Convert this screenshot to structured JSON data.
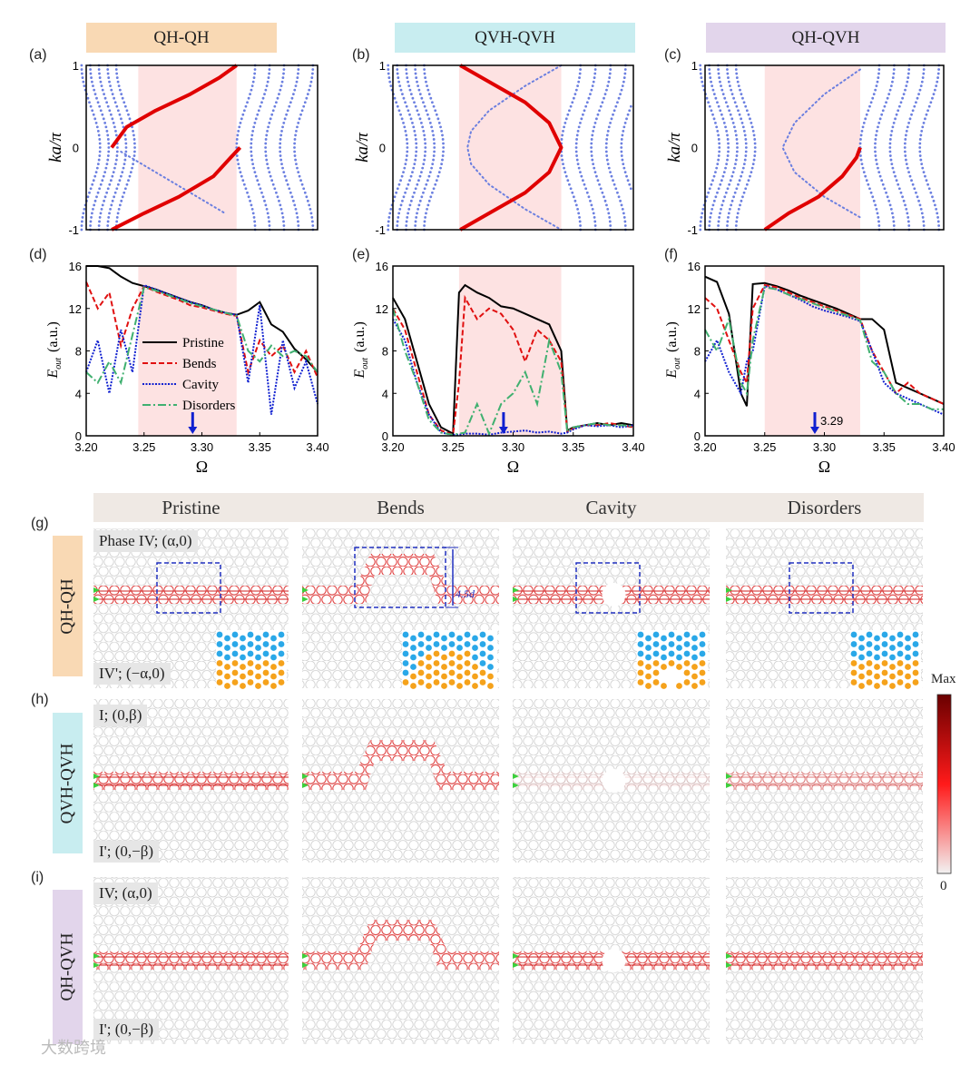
{
  "panels_top": {
    "headers": [
      "QH-QH",
      "QVH-QVH",
      "QH-QVH"
    ],
    "letters": [
      "(a)",
      "(b)",
      "(c)",
      "(d)",
      "(e)",
      "(f)"
    ],
    "colors": {
      "qhqh": "#f9d9b4",
      "qvh": "#c8edf0",
      "qhqvh": "#e2d5eb",
      "shade": "#fde2e2",
      "edge": "#e00000",
      "bulk": "#6b7fe0",
      "arrow": "#1020d0"
    }
  },
  "chart_data": [
    {
      "type": "scatter",
      "panel": "a",
      "ylabel": "ka/π",
      "xlabel": "",
      "yticks": [
        "1",
        "0",
        "-1"
      ],
      "ylim": [
        -1,
        1
      ],
      "xlim": [
        3.2,
        3.4
      ],
      "gap": [
        3.245,
        3.33
      ],
      "edge_red": [
        [
          [
            3.222,
            0
          ],
          [
            3.235,
            0.25
          ],
          [
            3.26,
            0.45
          ],
          [
            3.29,
            0.65
          ],
          [
            3.315,
            0.85
          ],
          [
            3.33,
            1
          ]
        ],
        [
          [
            3.222,
            -1
          ],
          [
            3.25,
            -0.8
          ],
          [
            3.28,
            -0.6
          ],
          [
            3.31,
            -0.35
          ],
          [
            3.325,
            -0.12
          ],
          [
            3.333,
            0
          ]
        ]
      ],
      "edge_blue": [
        [
          [
            3.23,
            -0.05
          ],
          [
            3.26,
            -0.3
          ],
          [
            3.29,
            -0.55
          ],
          [
            3.32,
            -0.8
          ]
        ]
      ]
    },
    {
      "type": "scatter",
      "panel": "b",
      "ylabel": "ka/π",
      "xlabel": "",
      "yticks": [
        "1",
        "0",
        "-1"
      ],
      "ylim": [
        -1,
        1
      ],
      "xlim": [
        3.2,
        3.4
      ],
      "gap": [
        3.255,
        3.34
      ],
      "edge_red": [
        [
          [
            3.256,
            1
          ],
          [
            3.28,
            0.8
          ],
          [
            3.31,
            0.55
          ],
          [
            3.33,
            0.3
          ],
          [
            3.34,
            0
          ],
          [
            3.33,
            -0.3
          ],
          [
            3.31,
            -0.55
          ],
          [
            3.28,
            -0.8
          ],
          [
            3.256,
            -1
          ]
        ]
      ],
      "edge_blue": [
        [
          [
            3.34,
            1
          ],
          [
            3.31,
            0.75
          ],
          [
            3.28,
            0.45
          ],
          [
            3.265,
            0.2
          ],
          [
            3.262,
            0
          ],
          [
            3.265,
            -0.2
          ],
          [
            3.28,
            -0.45
          ],
          [
            3.31,
            -0.75
          ],
          [
            3.34,
            -1
          ]
        ]
      ]
    },
    {
      "type": "scatter",
      "panel": "c",
      "ylabel": "ka/π",
      "xlabel": "",
      "yticks": [
        "1",
        "0",
        "-1"
      ],
      "ylim": [
        -1,
        1
      ],
      "xlim": [
        3.2,
        3.4
      ],
      "gap": [
        3.25,
        3.33
      ],
      "edge_red": [
        [
          [
            3.25,
            -1
          ],
          [
            3.27,
            -0.8
          ],
          [
            3.295,
            -0.6
          ],
          [
            3.315,
            -0.35
          ],
          [
            3.327,
            -0.12
          ],
          [
            3.33,
            0
          ]
        ]
      ],
      "edge_blue": [
        [
          [
            3.33,
            0.95
          ],
          [
            3.3,
            0.65
          ],
          [
            3.275,
            0.3
          ],
          [
            3.265,
            0
          ],
          [
            3.275,
            -0.3
          ],
          [
            3.3,
            -0.6
          ],
          [
            3.33,
            -0.85
          ]
        ]
      ]
    },
    {
      "type": "line",
      "panel": "d",
      "xlabel": "Ω",
      "ylabel_main": "E",
      "ylabel_sub": "out",
      "ylabel_unit": "(a.u.)",
      "xlim": [
        3.2,
        3.4
      ],
      "ylim": [
        0,
        16
      ],
      "gap": [
        3.245,
        3.33
      ],
      "xticks": [
        "3.20",
        "3.25",
        "3.30",
        "3.35",
        "3.40"
      ],
      "yticks": [
        "0",
        "4",
        "8",
        "12",
        "16"
      ],
      "arrow_at": 3.292,
      "arrow_label": "",
      "legend": [
        "Pristine",
        "Bends",
        "Cavity",
        "Disorders"
      ],
      "x": [
        3.2,
        3.21,
        3.22,
        3.23,
        3.24,
        3.25,
        3.26,
        3.27,
        3.28,
        3.29,
        3.3,
        3.31,
        3.32,
        3.33,
        3.34,
        3.35,
        3.36,
        3.37,
        3.38,
        3.39,
        3.4
      ],
      "series": [
        {
          "name": "Pristine",
          "values": [
            16,
            16,
            15.8,
            15,
            14.4,
            14.1,
            13.8,
            13.4,
            13.0,
            12.6,
            12.3,
            11.9,
            11.6,
            11.4,
            11.8,
            12.6,
            10.5,
            9.8,
            8.2,
            7.2,
            6
          ]
        },
        {
          "name": "Bends",
          "values": [
            14.5,
            12,
            13.5,
            8.5,
            12,
            14.1,
            13.6,
            13.2,
            12.8,
            12.3,
            12.1,
            11.8,
            11.5,
            11.3,
            6,
            9,
            7.5,
            8.5,
            6,
            8,
            5.5
          ]
        },
        {
          "name": "Cavity",
          "values": [
            6,
            9,
            4,
            10,
            6,
            14.2,
            13.8,
            13.4,
            13.0,
            12.6,
            12.3,
            11.9,
            11.6,
            11.4,
            5,
            12.3,
            2,
            9,
            4.5,
            7,
            3
          ]
        },
        {
          "name": "Disorders",
          "values": [
            6,
            5,
            7,
            5,
            9.5,
            14,
            13.7,
            13.3,
            12.9,
            12.5,
            12.2,
            11.9,
            11.6,
            11.3,
            8,
            7,
            8.5,
            7.5,
            8,
            7.5,
            6
          ]
        }
      ]
    },
    {
      "type": "line",
      "panel": "e",
      "xlabel": "Ω",
      "ylabel_main": "E",
      "ylabel_sub": "out",
      "ylabel_unit": "(a.u.)",
      "xlim": [
        3.2,
        3.4
      ],
      "ylim": [
        0,
        16
      ],
      "gap": [
        3.255,
        3.34
      ],
      "xticks": [
        "3.20",
        "3.25",
        "3.30",
        "3.35",
        "3.40"
      ],
      "yticks": [
        "0",
        "4",
        "8",
        "12",
        "16"
      ],
      "arrow_at": 3.292,
      "arrow_label": "",
      "x": [
        3.2,
        3.21,
        3.22,
        3.23,
        3.24,
        3.25,
        3.255,
        3.26,
        3.27,
        3.28,
        3.29,
        3.3,
        3.31,
        3.32,
        3.33,
        3.34,
        3.345,
        3.35,
        3.36,
        3.37,
        3.38,
        3.39,
        3.4
      ],
      "series": [
        {
          "name": "Pristine",
          "values": [
            13,
            11,
            7,
            3,
            0.8,
            0.2,
            13.5,
            14.2,
            13.5,
            13,
            12.2,
            12,
            11.5,
            11,
            10.5,
            8,
            0.5,
            0.8,
            1,
            1.2,
            1,
            1.2,
            1
          ]
        },
        {
          "name": "Bends",
          "values": [
            12,
            10,
            6,
            2,
            0.5,
            0.1,
            5,
            13,
            11,
            12,
            11.5,
            10,
            7,
            10,
            9,
            7,
            0.4,
            0.7,
            1,
            1,
            1.2,
            1,
            0.8
          ]
        },
        {
          "name": "Cavity",
          "values": [
            11,
            9,
            5,
            2,
            0.3,
            0.1,
            0.1,
            0.2,
            0.2,
            0.1,
            0.3,
            0.4,
            0.5,
            0.3,
            0.4,
            0.2,
            0.3,
            0.6,
            1,
            0.9,
            1,
            0.8,
            1
          ]
        },
        {
          "name": "Disorders",
          "values": [
            12,
            8,
            5,
            1.5,
            0.3,
            0.1,
            0.2,
            0.3,
            3,
            0.2,
            3,
            4,
            6,
            3,
            9,
            6,
            0.4,
            0.8,
            1,
            1.2,
            1,
            1,
            0.9
          ]
        }
      ]
    },
    {
      "type": "line",
      "panel": "f",
      "xlabel": "Ω",
      "ylabel_main": "E",
      "ylabel_sub": "out",
      "ylabel_unit": "(a.u.)",
      "xlim": [
        3.2,
        3.4
      ],
      "ylim": [
        0,
        16
      ],
      "gap": [
        3.25,
        3.33
      ],
      "xticks": [
        "3.20",
        "3.25",
        "3.30",
        "3.35",
        "3.40"
      ],
      "yticks": [
        "0",
        "4",
        "8",
        "12",
        "16"
      ],
      "arrow_at": 3.292,
      "arrow_label": "3.29",
      "x": [
        3.2,
        3.21,
        3.22,
        3.23,
        3.235,
        3.24,
        3.25,
        3.26,
        3.27,
        3.28,
        3.29,
        3.3,
        3.31,
        3.32,
        3.33,
        3.34,
        3.35,
        3.36,
        3.37,
        3.38,
        3.39,
        3.4
      ],
      "series": [
        {
          "name": "Pristine",
          "values": [
            15,
            14.5,
            11.5,
            4,
            2.8,
            14.3,
            14.4,
            14.1,
            13.7,
            13.2,
            12.8,
            12.4,
            12,
            11.5,
            11,
            11,
            10,
            5,
            4.5,
            4,
            3.5,
            3
          ]
        },
        {
          "name": "Bends",
          "values": [
            13,
            12,
            9,
            6,
            5,
            12,
            14.2,
            14,
            13.5,
            13,
            12.6,
            12.2,
            11.8,
            11.4,
            11,
            8,
            6,
            4,
            5,
            4,
            3.5,
            3
          ]
        },
        {
          "name": "Cavity",
          "values": [
            7,
            9,
            6,
            4,
            7,
            8,
            14.1,
            13.8,
            13.3,
            12.8,
            12.2,
            11.8,
            11.5,
            11.2,
            10.8,
            8,
            5,
            4,
            3.5,
            3,
            2.5,
            2
          ]
        },
        {
          "name": "Disorders",
          "values": [
            10,
            8,
            11,
            5,
            4,
            9,
            14,
            13.8,
            13.3,
            12.9,
            12.5,
            12.1,
            11.7,
            11.3,
            10.9,
            7,
            6,
            4,
            3,
            3,
            2.5,
            2.5
          ]
        }
      ]
    }
  ],
  "fields": {
    "columns": [
      "Pristine",
      "Bends",
      "Cavity",
      "Disorders"
    ],
    "rows": [
      {
        "letter": "(g)",
        "label": "QH-QH",
        "top_tag": "Phase IV;  (α,0)",
        "bottom_tag": "IV';  (−α,0)"
      },
      {
        "letter": "(h)",
        "label": "QVH-QVH",
        "top_tag": "I;  (0,β)",
        "bottom_tag": "I';  (0,−β)"
      },
      {
        "letter": "(i)",
        "label": "QH-QVH",
        "top_tag": "IV;  (α,0)",
        "bottom_tag": "I';  (0,−β)"
      }
    ],
    "bend_height_label": "4.5d",
    "colorbar": {
      "max_label": "Max",
      "min_label": "0",
      "colors": [
        "#f2f2f2",
        "#ff1a1a",
        "#6a0000"
      ]
    },
    "inset_colors": {
      "upper": "#2aa8e8",
      "lower": "#f5a21b"
    },
    "watermark": "大数跨境"
  }
}
